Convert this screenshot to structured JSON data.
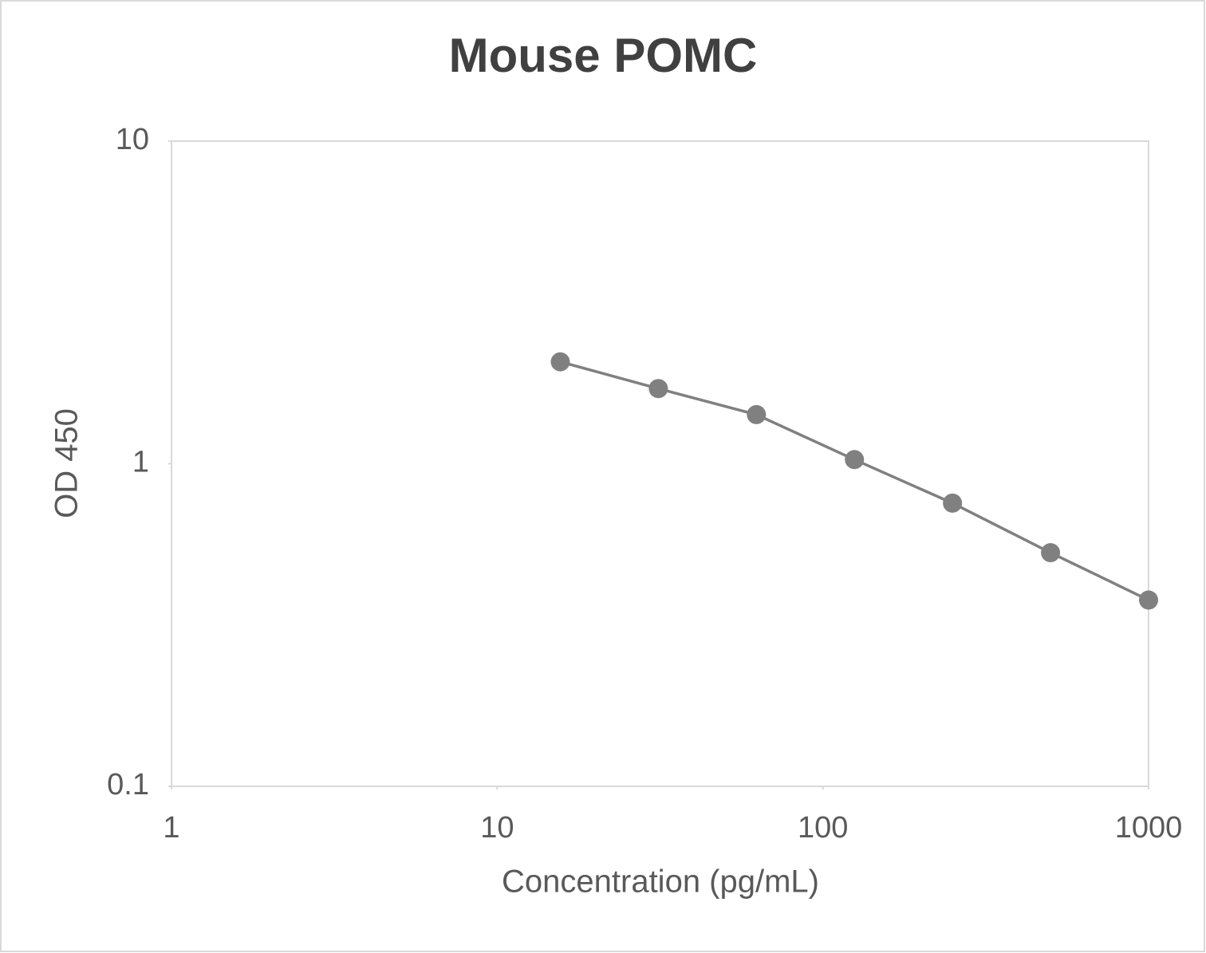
{
  "chart_data": {
    "type": "scatter-line",
    "title": "Mouse POMC",
    "x_label": "Concentration (pg/mL)",
    "y_label": "OD 450",
    "x": [
      15.625,
      31.25,
      62.5,
      125,
      250,
      500,
      1000
    ],
    "series": [
      {
        "name": "Mouse POMC",
        "color": "#808080",
        "values": [
          2.07,
          1.71,
          1.42,
          1.03,
          0.755,
          0.53,
          0.378
        ]
      }
    ],
    "xlim": [
      1,
      1000
    ],
    "xticks": [
      1,
      10,
      100,
      1000
    ],
    "ylim": [
      0.1,
      10
    ],
    "yticks": [
      0.1,
      1,
      10
    ],
    "xscale": "log",
    "yscale": "log",
    "grid": false,
    "legend": false
  }
}
